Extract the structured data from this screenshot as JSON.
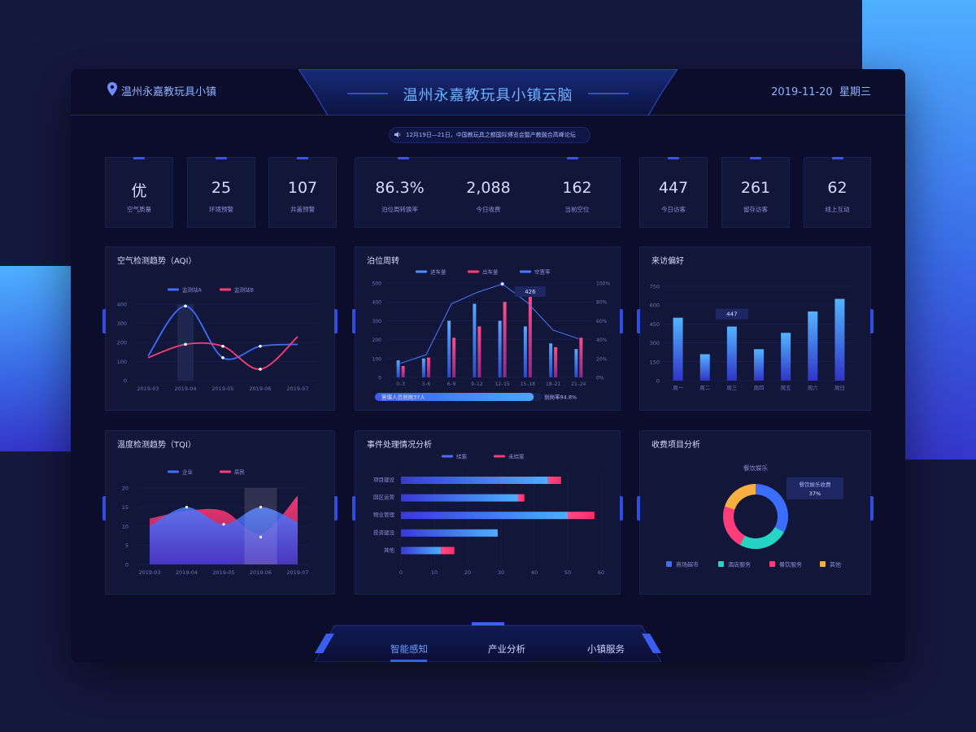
{
  "header": {
    "location": "温州永嘉教玩具小镇",
    "title": "温州永嘉教玩具小镇云脑",
    "date": "2019-11-20",
    "weekday": "星期三",
    "marquee": "12月19日—21日，中国教玩具之都国际博览会暨产教融合高峰论坛"
  },
  "stats": [
    {
      "value": "优",
      "label": "空气质量"
    },
    {
      "value": "25",
      "label": "环境预警"
    },
    {
      "value": "107",
      "label": "井盖预警"
    },
    {
      "value": "86.3%",
      "label": "泊位周转换率"
    },
    {
      "value": "2,088",
      "label": "今日收费"
    },
    {
      "value": "162",
      "label": "当前空位"
    },
    {
      "value": "447",
      "label": "今日访客"
    },
    {
      "value": "261",
      "label": "留存访客"
    },
    {
      "value": "62",
      "label": "线上互动"
    }
  ],
  "panels": {
    "aqi_title": "空气检测趋势（AQI）",
    "parking_title": "泊位周转",
    "visitor_title": "来访偏好",
    "tqi_title": "温度检测趋势（TQI）",
    "events_title": "事件处理情况分析",
    "revenue_title": "收费项目分析"
  },
  "chart_data": [
    {
      "id": "aqi",
      "type": "line",
      "categories": [
        "2019-03",
        "2019-04",
        "2019-05",
        "2019-06",
        "2019-07"
      ],
      "series": [
        {
          "name": "监测站A",
          "values": [
            130,
            390,
            120,
            180,
            190
          ]
        },
        {
          "name": "监测站B",
          "values": [
            120,
            190,
            180,
            60,
            230
          ]
        }
      ],
      "ylim": [
        0,
        400
      ],
      "yticks": [
        "0",
        "100",
        "200",
        "300",
        "400"
      ],
      "colors": [
        "#3d6cff",
        "#ff3d73"
      ]
    },
    {
      "id": "parking",
      "type": "bar",
      "categories": [
        "0–3",
        "3–6",
        "6–9",
        "9–12",
        "12–15",
        "15–18",
        "18–21",
        "21–24"
      ],
      "series": [
        {
          "name": "进车量",
          "values": [
            90,
            100,
            300,
            390,
            300,
            270,
            180,
            150
          ]
        },
        {
          "name": "出车量",
          "values": [
            60,
            105,
            210,
            270,
            400,
            430,
            160,
            210
          ]
        },
        {
          "name": "空置率",
          "values": [
            15,
            24,
            78,
            90,
            99,
            79,
            50,
            41
          ]
        }
      ],
      "ylim": [
        0,
        500
      ],
      "yticks": [
        "0",
        "100",
        "200",
        "300",
        "400",
        "500"
      ],
      "y2ticks": [
        "0%",
        "20%",
        "40%",
        "60%",
        "80%",
        "100%"
      ],
      "tooltip": "426",
      "progress_label": "管理人员到岗37人",
      "progress_value": 0.948,
      "progress_rate": "到岗率94.8%",
      "colors": [
        "#4a90ff",
        "#ff3d73",
        "#4a78ff"
      ]
    },
    {
      "id": "visitor",
      "type": "bar",
      "categories": [
        "周一",
        "周二",
        "周三",
        "周四",
        "周五",
        "周六",
        "周日"
      ],
      "values": [
        500,
        210,
        430,
        250,
        380,
        550,
        650
      ],
      "ylim": [
        0,
        750
      ],
      "yticks": [
        "0",
        "150",
        "300",
        "450",
        "600",
        "750"
      ],
      "tooltip": "447"
    },
    {
      "id": "tqi",
      "type": "area",
      "categories": [
        "2019-03",
        "2019-04",
        "2019-05",
        "2019-06",
        "2019-07"
      ],
      "series": [
        {
          "name": "企业",
          "values": [
            10,
            15,
            10.5,
            15,
            11
          ]
        },
        {
          "name": "居民",
          "values": [
            12,
            14,
            14,
            8,
            18
          ]
        }
      ],
      "ylim": [
        0,
        20
      ],
      "yticks": [
        "0",
        "5",
        "10",
        "15",
        "20"
      ],
      "colors": [
        "#3d6cff",
        "#ff3d73"
      ]
    },
    {
      "id": "events",
      "type": "bar",
      "orientation": "horizontal",
      "categories": [
        "项目建设",
        "园区运营",
        "物业管理",
        "投资建设",
        "其他"
      ],
      "series": [
        {
          "name": "结案",
          "values": [
            44,
            35,
            50,
            29,
            12
          ]
        },
        {
          "name": "未结案",
          "values": [
            4,
            2,
            8,
            0,
            4
          ]
        }
      ],
      "xlim": [
        0,
        60
      ],
      "xticks": [
        "0",
        "10",
        "20",
        "30",
        "40",
        "50",
        "60"
      ],
      "colors": [
        "#4a6cff",
        "#ff3d73"
      ]
    },
    {
      "id": "revenue",
      "type": "pie",
      "title": "餐饮娱乐",
      "tooltip_label": "餐饮娱乐收费",
      "tooltip_value": "37%",
      "labels": [
        "商场超市",
        "酒店服务",
        "餐饮服务",
        "其他"
      ],
      "values": [
        33,
        25,
        22,
        20
      ],
      "colors": [
        "#3b6dff",
        "#25d4c4",
        "#ff3d7a",
        "#f6b042"
      ]
    }
  ],
  "nav": {
    "tabs": [
      "智能感知",
      "产业分析",
      "小镇服务"
    ],
    "active": 0
  }
}
